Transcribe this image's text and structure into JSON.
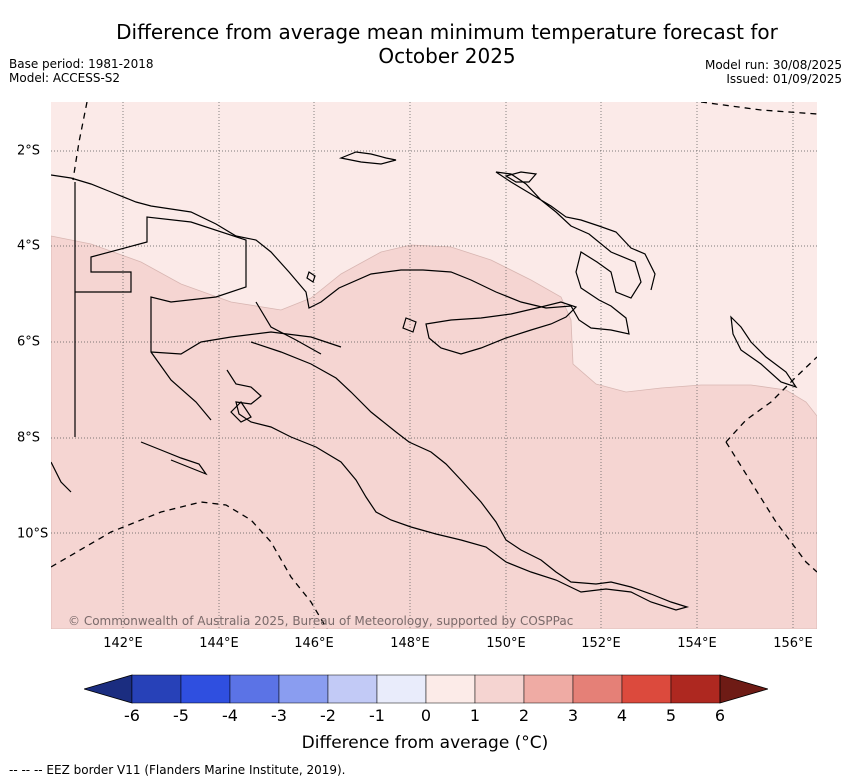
{
  "title_line1": "Difference from average mean minimum temperature forecast for",
  "title_line2": "October 2025",
  "meta_left": {
    "base_period": "Base period: 1981-2018",
    "model": "Model: ACCESS-S2"
  },
  "meta_right": {
    "model_run": "Model run: 30/08/2025",
    "issued": "Issued: 01/09/2025"
  },
  "map": {
    "lon_ticks": [
      "142°E",
      "144°E",
      "146°E",
      "148°E",
      "150°E",
      "152°E",
      "154°E",
      "156°E"
    ],
    "lat_ticks": [
      "2°S",
      "4°S",
      "6°S",
      "8°S",
      "10°S"
    ],
    "copyright": "© Commonwealth of Australia 2025, Bureau of Meteorology, supported by COSPPac",
    "anomaly_colors": {
      "0_to_1": "#fbeae8",
      "1_to_2": "#f5d5d2"
    }
  },
  "colorbar": {
    "label": "Difference from average (°C)",
    "ticks": [
      "-6",
      "-5",
      "-4",
      "-3",
      "-2",
      "-1",
      "0",
      "1",
      "2",
      "3",
      "4",
      "5",
      "6"
    ],
    "colors": [
      "#1b2d80",
      "#2741b8",
      "#2f4fe0",
      "#5b73e6",
      "#8a9df0",
      "#c2caf6",
      "#e9ecfb",
      "#fcebe8",
      "#f5d4d1",
      "#efaba4",
      "#e58077",
      "#dc4a3d",
      "#ae2820",
      "#6e1b15"
    ]
  },
  "footnote": "--  --  -- EEZ border V11 (Flanders Marine Institute, 2019)."
}
